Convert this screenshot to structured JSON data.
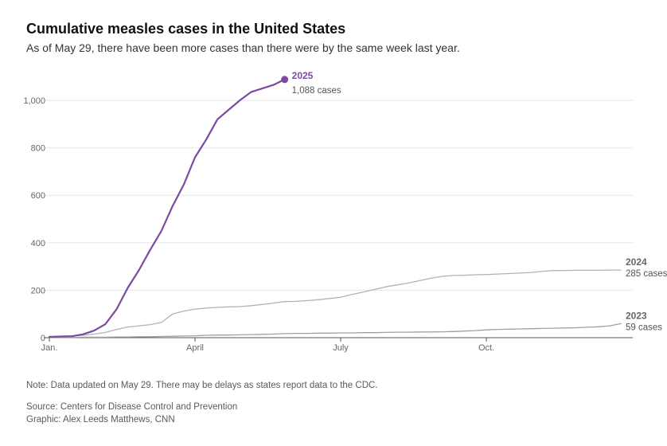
{
  "header": {
    "title": "Cumulative measles cases in the United States",
    "subtitle": "As of May 29, there have been more cases than there were by the same week last year."
  },
  "footer": {
    "note": "Note: Data updated on May 29. There may be delays as states report data to the CDC.",
    "source": "Source: Centers for Disease Control and Prevention",
    "graphic": "Graphic: Alex Leeds Matthews, CNN"
  },
  "colors": {
    "s2025": "#7b4aa3",
    "s2024": "#b3b3b3",
    "s2023": "#a0a0a0",
    "grid": "#e6e6e6",
    "axis": "#555555"
  },
  "chart_data": {
    "type": "line",
    "x_unit": "week of year",
    "xlim": [
      1,
      52
    ],
    "ylim": [
      0,
      1000
    ],
    "y_ticks": [
      0,
      200,
      400,
      600,
      800,
      1000
    ],
    "y_tick_labels": [
      "0",
      "200",
      "400",
      "600",
      "800",
      "1,000"
    ],
    "x_ticks": [
      {
        "week": 1,
        "label": "Jan."
      },
      {
        "week": 14,
        "label": "April"
      },
      {
        "week": 27,
        "label": "July"
      },
      {
        "week": 40,
        "label": "Oct."
      }
    ],
    "grid": true,
    "series": [
      {
        "name": "2025",
        "end_label": "1,088 cases",
        "weeks": [
          1,
          2,
          3,
          4,
          5,
          6,
          7,
          8,
          9,
          10,
          11,
          12,
          13,
          14,
          15,
          16,
          17,
          18,
          19,
          20,
          21,
          22
        ],
        "values": [
          3,
          5,
          6,
          14,
          30,
          57,
          120,
          210,
          285,
          370,
          450,
          555,
          645,
          760,
          835,
          920,
          960,
          1000,
          1035,
          1050,
          1065,
          1088
        ]
      },
      {
        "name": "2024",
        "end_label": "285 cases",
        "weeks": [
          1,
          2,
          3,
          4,
          5,
          6,
          7,
          8,
          9,
          10,
          11,
          12,
          13,
          14,
          15,
          16,
          17,
          18,
          19,
          20,
          21,
          22,
          23,
          24,
          25,
          26,
          27,
          28,
          29,
          30,
          31,
          32,
          33,
          34,
          35,
          36,
          37,
          38,
          39,
          40,
          41,
          42,
          43,
          44,
          45,
          46,
          47,
          48,
          49,
          50,
          51,
          52
        ],
        "values": [
          5,
          6,
          8,
          10,
          15,
          22,
          35,
          45,
          50,
          55,
          64,
          100,
          112,
          120,
          125,
          128,
          130,
          131,
          135,
          140,
          146,
          152,
          153,
          156,
          160,
          165,
          170,
          182,
          192,
          203,
          214,
          222,
          230,
          240,
          250,
          258,
          262,
          263,
          265,
          266,
          268,
          270,
          272,
          275,
          280,
          283,
          283,
          284,
          284,
          284,
          285,
          285
        ]
      },
      {
        "name": "2023",
        "end_label": "59 cases",
        "weeks": [
          1,
          2,
          3,
          4,
          5,
          6,
          7,
          8,
          9,
          10,
          11,
          12,
          13,
          14,
          15,
          16,
          17,
          18,
          19,
          20,
          21,
          22,
          23,
          24,
          25,
          26,
          27,
          28,
          29,
          30,
          31,
          32,
          33,
          34,
          35,
          36,
          37,
          38,
          39,
          40,
          41,
          42,
          43,
          44,
          45,
          46,
          47,
          48,
          49,
          50,
          51,
          52
        ],
        "values": [
          1,
          1,
          1,
          2,
          2,
          2,
          3,
          3,
          4,
          4,
          5,
          6,
          7,
          8,
          10,
          11,
          11,
          12,
          13,
          14,
          15,
          17,
          18,
          18,
          19,
          19,
          20,
          20,
          21,
          21,
          22,
          23,
          23,
          24,
          24,
          25,
          26,
          28,
          30,
          33,
          35,
          36,
          37,
          38,
          39,
          40,
          41,
          42,
          44,
          46,
          50,
          59
        ]
      }
    ]
  }
}
